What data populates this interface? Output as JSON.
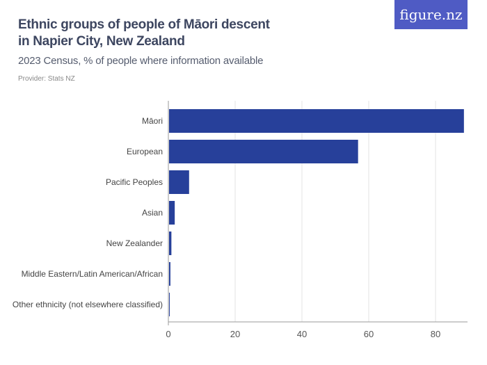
{
  "logo": "figure.nz",
  "colors": {
    "bar": "#27409a",
    "logo": "#4f5bc4",
    "grid": "#e3e3e3"
  },
  "chart_data": {
    "type": "bar",
    "orientation": "horizontal",
    "title_line1": "Ethnic groups of people of Māori descent",
    "title_line2": "in Napier City, New Zealand",
    "subtitle": "2023 Census, % of people where information available",
    "provider": "Provider: Stats NZ",
    "categories": [
      "Māori",
      "European",
      "Pacific Peoples",
      "Asian",
      "New Zealander",
      "Middle Eastern/Latin American/African",
      "Other ethnicity (not elsewhere classified)"
    ],
    "values": [
      88.3,
      56.6,
      6.0,
      1.7,
      0.7,
      0.4,
      0.2
    ],
    "xlim": [
      0,
      90
    ],
    "xticks": [
      0,
      20,
      40,
      60,
      80
    ],
    "grid": true,
    "xlabel": "",
    "ylabel": ""
  }
}
